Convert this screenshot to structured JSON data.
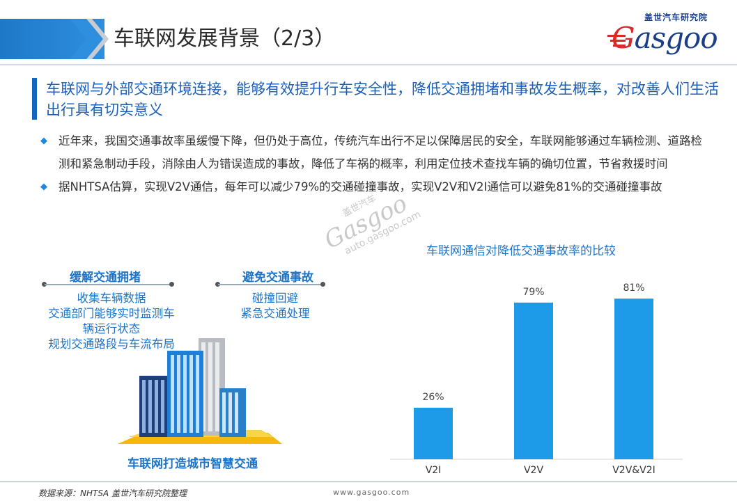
{
  "header": {
    "title": "车联网发展背景（2/3）",
    "logo_cn": "盖世汽车研究院",
    "logo_en_first": "G",
    "logo_en_rest": "asgoo"
  },
  "subtitle": "车联网与外部交通环境连接，能够有效提升行车安全性，降低交通拥堵和事故发生概率，对改善人们生活出行具有切实意义",
  "bullets": [
    "近年来，我国交通事故率虽缓慢下降，但仍处于高位，传统汽车出行不足以保障居民的安全，车联网能够通过车辆检测、道路检测和紧急制动手段，消除由人为错误造成的事故，降低了车祸的概率，利用定位技术查找车辆的确切位置，节省救援时间",
    "据NHTSA估算，实现V2V通信，每年可以减少79%的交通碰撞事故，实现V2V和V2I通信可以避免81%的交通碰撞事故"
  ],
  "diagram": {
    "left_title": "缓解交通拥堵",
    "left_lines": [
      "收集车辆数据",
      "交通部门能够实时监测车",
      "辆运行状态",
      "规划交通路段与车流布局"
    ],
    "right_title": "避免交通事故",
    "right_lines": [
      "碰撞回避",
      "紧急交通处理"
    ],
    "caption": "车联网打造城市智慧交通"
  },
  "watermark": {
    "line1": "盖世汽车",
    "line2": "Gasgoo",
    "line3": "auto.gasgoo.com"
  },
  "chart_data": {
    "type": "bar",
    "title": "车联网通信对降低交通事故率的比较",
    "categories": [
      "V2I",
      "V2V",
      "V2V&V2I"
    ],
    "values": [
      26,
      79,
      81
    ],
    "value_labels": [
      "26%",
      "79%",
      "81%"
    ],
    "ylim": [
      0,
      100
    ],
    "bar_color": "#1e9be8",
    "grid": false
  },
  "footer": {
    "source": "数据来源：NHTSA  盖世汽车研究院整理",
    "url": "www.gasgoo.com"
  },
  "colors": {
    "accent": "#1e74c8",
    "brand_red": "#d62b2b",
    "brand_navy": "#1b3f86"
  }
}
